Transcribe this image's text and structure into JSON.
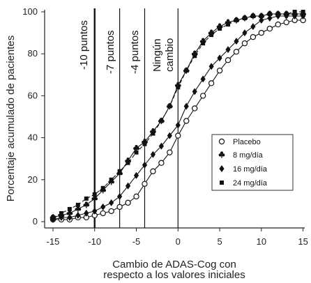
{
  "chart_data": {
    "type": "line",
    "title": "",
    "xlabel_line1": "Cambio de ADAS-Cog con",
    "xlabel_line2": "respecto a los valores iniciales",
    "ylabel": "Porcentaje acumulado de pacientes",
    "xlim": [
      -16,
      15.2
    ],
    "ylim": [
      -3,
      101
    ],
    "xticks": [
      -15,
      -10,
      -5,
      0,
      5,
      10,
      15
    ],
    "yticks": [
      0,
      20,
      40,
      60,
      80,
      100
    ],
    "grid": false,
    "legend_position": "right-middle",
    "reference_lines": [
      {
        "x": -10,
        "label": "-10 puntos",
        "weight": "bold"
      },
      {
        "x": -7,
        "label": "-7 puntos",
        "weight": "thin"
      },
      {
        "x": -4,
        "label": "-4 puntos",
        "weight": "thin"
      },
      {
        "x": 0,
        "label_line1": "Ningún",
        "label_line2": "cambio",
        "weight": "thin"
      }
    ],
    "series": [
      {
        "name": "Placebo",
        "marker": "open-circle",
        "line": "solid",
        "x": [
          -15,
          -14,
          -13,
          -12,
          -11,
          -10,
          -9,
          -8,
          -7,
          -6,
          -5,
          -4,
          -3,
          -2,
          -1,
          0,
          1,
          2,
          3,
          4,
          5,
          6,
          7,
          8,
          9,
          10,
          11,
          12,
          13,
          14,
          15
        ],
        "y": [
          1,
          1,
          1,
          2,
          2,
          3,
          4,
          5,
          7,
          9,
          12,
          18,
          24,
          28,
          33,
          41,
          48,
          54,
          60,
          66,
          72,
          77,
          81,
          85,
          88,
          90,
          92,
          94,
          95,
          96,
          96
        ]
      },
      {
        "name": "8 mg/día",
        "marker": "club",
        "line": "solid",
        "x": [
          -15,
          -14,
          -13,
          -12,
          -11,
          -10,
          -9,
          -8,
          -7,
          -6,
          -5,
          -4,
          -3,
          -2,
          -1,
          0,
          1,
          2,
          3,
          4,
          5,
          6,
          7,
          8,
          9,
          10,
          11,
          12,
          13,
          14,
          15
        ],
        "y": [
          2,
          3,
          4,
          6,
          8,
          11,
          15,
          19,
          23,
          29,
          35,
          38,
          43,
          48,
          55,
          65,
          72,
          80,
          86,
          90,
          93,
          95,
          96,
          97,
          98,
          98,
          99,
          99,
          99,
          99,
          99
        ]
      },
      {
        "name": "16 mg/día",
        "marker": "diamond",
        "line": "solid",
        "x": [
          -15,
          -14,
          -13,
          -12,
          -11,
          -10,
          -9,
          -8,
          -7,
          -6,
          -5,
          -4,
          -3,
          -2,
          -1,
          0,
          1,
          2,
          3,
          4,
          5,
          6,
          7,
          8,
          9,
          10,
          11,
          12,
          13,
          14,
          15
        ],
        "y": [
          1,
          2,
          2,
          3,
          4,
          5,
          7,
          9,
          12,
          17,
          22,
          27,
          32,
          36,
          41,
          46,
          55,
          62,
          68,
          74,
          78,
          82,
          86,
          90,
          93,
          96,
          97,
          98,
          98,
          98,
          98
        ]
      },
      {
        "name": "24 mg/día",
        "marker": "square",
        "line": "dashed",
        "x": [
          -15,
          -14,
          -13,
          -12,
          -11,
          -10,
          -9,
          -8,
          -7,
          -6,
          -5,
          -4,
          -3,
          -2,
          -1,
          0,
          1,
          2,
          3,
          4,
          5,
          6,
          7,
          8,
          9,
          10,
          11,
          12,
          13,
          14,
          15
        ],
        "y": [
          2,
          4,
          6,
          8,
          11,
          13,
          16,
          20,
          24,
          28,
          33,
          37,
          42,
          48,
          55,
          64,
          72,
          79,
          85,
          89,
          92,
          94,
          96,
          97,
          98,
          98,
          99,
          99,
          99,
          100,
          100
        ]
      }
    ]
  }
}
